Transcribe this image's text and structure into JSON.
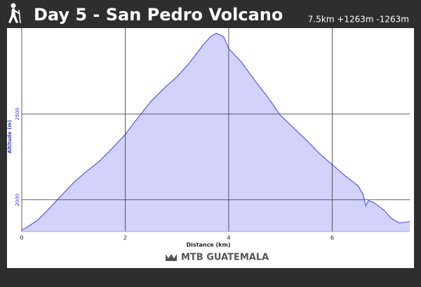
{
  "chart_data": {
    "type": "area",
    "title": "Day 5 - San Pedro Volcano",
    "subtitle": "7.5km +1263m -1263m",
    "xlabel": "Distance (km)",
    "ylabel": "Altitude (m)",
    "logo": "MTB GUATEMALA",
    "x": [
      0,
      0.1,
      0.3,
      0.5,
      0.75,
      1,
      1.25,
      1.5,
      1.75,
      2,
      2.25,
      2.5,
      2.75,
      3,
      3.25,
      3.5,
      3.65,
      3.76,
      3.9,
      4,
      4.25,
      4.5,
      4.75,
      5,
      5.25,
      5.5,
      5.75,
      6,
      6.25,
      6.5,
      6.6,
      6.65,
      6.7,
      6.8,
      7,
      7.15,
      7.3,
      7.5
    ],
    "series": [
      {
        "color": "#5a5ae6",
        "fill": "#d2d2fa",
        "values": [
          1825,
          1840,
          1880,
          1939,
          2020,
          2100,
          2165,
          2225,
          2300,
          2381,
          2480,
          2574,
          2650,
          2717,
          2800,
          2900,
          2950,
          2970,
          2950,
          2881,
          2800,
          2697,
          2600,
          2492,
          2420,
          2348,
          2270,
          2205,
          2140,
          2082,
          2030,
          1965,
          1995,
          1985,
          1940,
          1890,
          1865,
          1873
        ]
      }
    ],
    "xlim": [
      0,
      7.5
    ],
    "ylim": [
      1815,
      3000
    ],
    "xticks": [
      0,
      2,
      4,
      6
    ],
    "yticks": [
      2000,
      2500
    ],
    "grid": true
  }
}
